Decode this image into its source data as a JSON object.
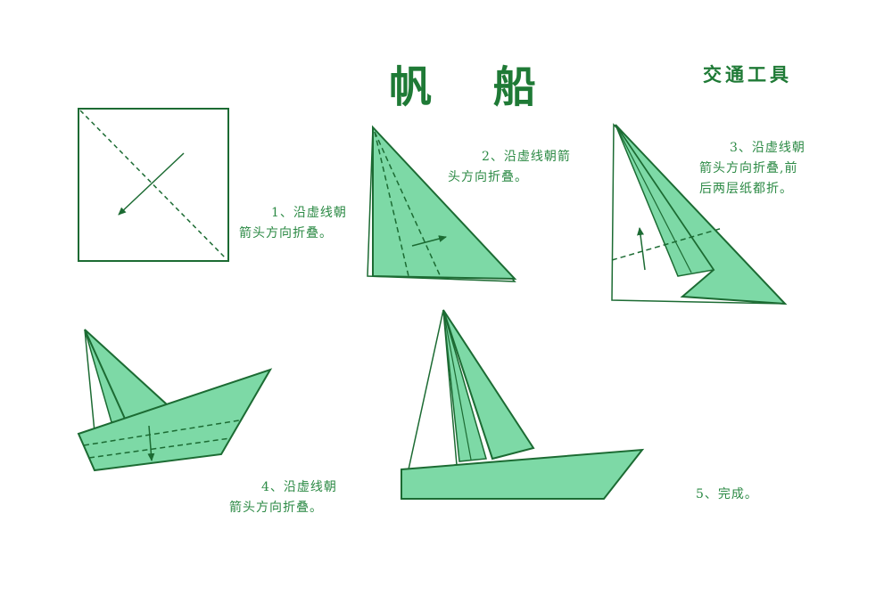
{
  "title": "帆 船",
  "category": "交通工具",
  "steps": [
    {
      "line1": "1、沿虚线朝",
      "line2": "箭头方向折叠。"
    },
    {
      "line1": "2、沿虚线朝箭",
      "line2": "头方向折叠。"
    },
    {
      "line1": "3、沿虚线朝",
      "line2": "箭头方向折叠,前",
      "line3": "后两层纸都折。"
    },
    {
      "line1": "4、沿虚线朝",
      "line2": "箭头方向折叠。"
    },
    {
      "line1": "5、完成。"
    }
  ],
  "colors": {
    "paper_green": "#7dd9a6",
    "line_green": "#1c6b33",
    "text_green": "#2c8a45",
    "title_green": "#1f7a36"
  }
}
